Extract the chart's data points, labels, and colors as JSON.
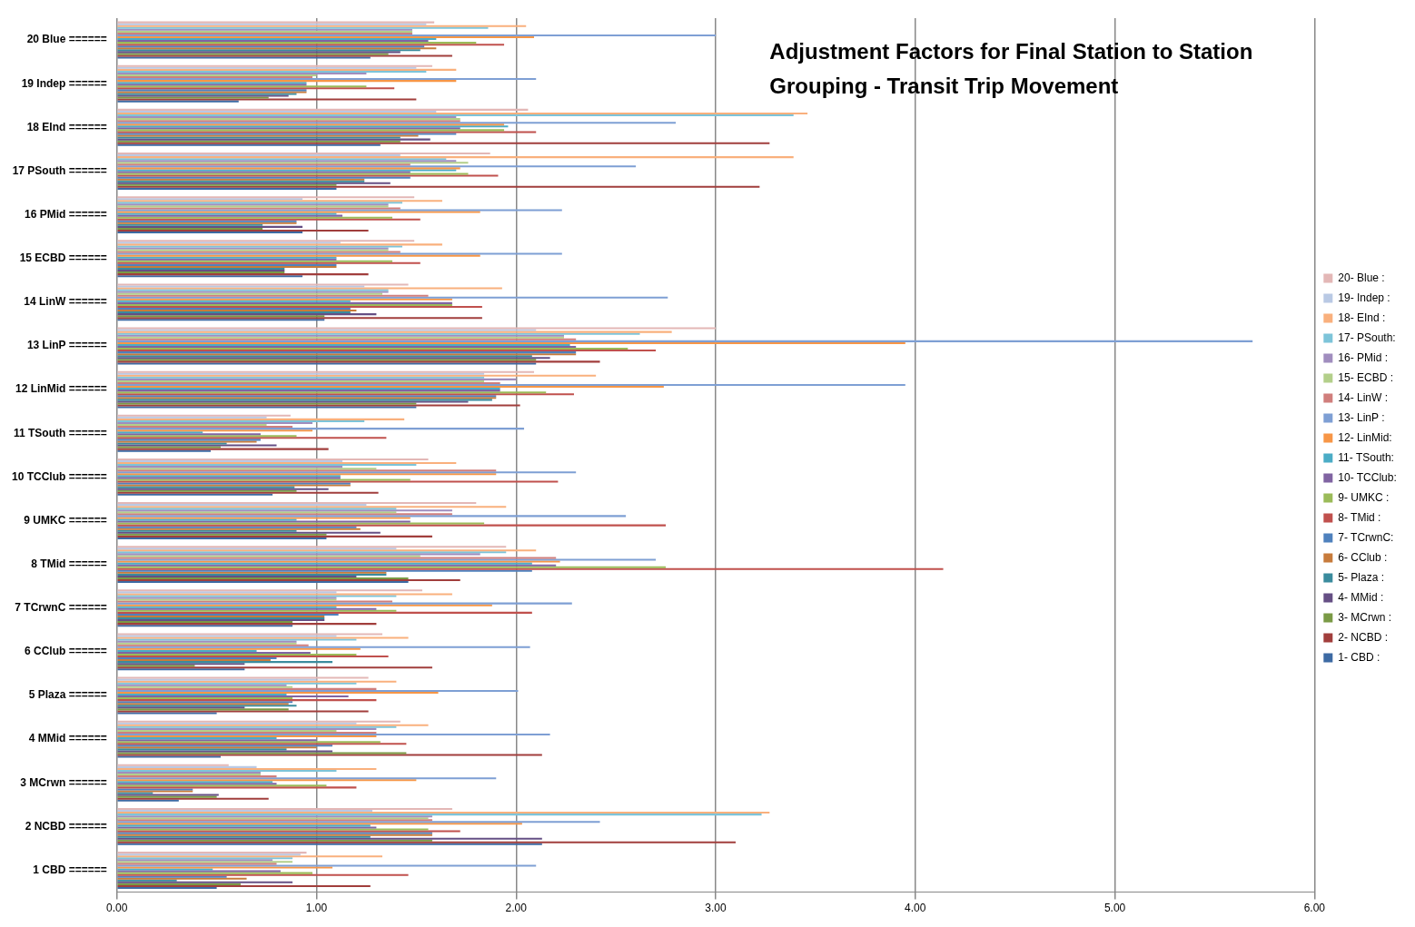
{
  "chart_data": {
    "type": "bar",
    "orientation": "horizontal",
    "title": "Adjustment Factors for Final Station to Station Grouping - Transit Trip Movement",
    "categories": [
      "20 Blue ======",
      "19 Indep ======",
      "18 EInd ======",
      "17 PSouth ======",
      "16 PMid ======",
      "15 ECBD ======",
      "14 LinW ======",
      "13 LinP ======",
      "12 LinMid ======",
      "11 TSouth ======",
      "10 TCClub ======",
      "9 UMKC ======",
      "8 TMid ======",
      "7 TCrwnC ======",
      "6 CClub ======",
      "5 Plaza ======",
      "4 MMid ======",
      "3 MCrwn ======",
      "2 NCBD ======",
      "1 CBD ======"
    ],
    "xlim": [
      0,
      6
    ],
    "xticks": [
      {
        "value": 0,
        "label": "0.00"
      },
      {
        "value": 1,
        "label": "1.00"
      },
      {
        "value": 2,
        "label": "2.00"
      },
      {
        "value": 3,
        "label": "3.00"
      },
      {
        "value": 4,
        "label": "4.00"
      },
      {
        "value": 5,
        "label": "5.00"
      },
      {
        "value": 6,
        "label": "6.00"
      }
    ],
    "grid": "x",
    "legend": "right",
    "series": [
      {
        "name": "1- CBD :",
        "color": "#3d6aa3",
        "values": [
          1.27,
          0.61,
          1.32,
          1.1,
          0.93,
          0.93,
          1.04,
          2.1,
          1.5,
          0.47,
          0.78,
          1.05,
          1.46,
          0.88,
          0.64,
          0.5,
          0.52,
          0.31,
          2.13,
          0.5
        ]
      },
      {
        "name": "2- NCBD :",
        "color": "#a13e3c",
        "values": [
          1.68,
          1.5,
          3.27,
          3.22,
          1.26,
          1.26,
          1.83,
          2.42,
          2.02,
          1.06,
          1.31,
          1.58,
          1.72,
          1.3,
          1.58,
          1.26,
          2.13,
          0.76,
          3.1,
          1.27
        ]
      },
      {
        "name": "3- MCrwn :",
        "color": "#7a9a45",
        "values": [
          1.36,
          0.76,
          1.42,
          1.1,
          0.73,
          0.84,
          1.04,
          2.1,
          1.5,
          0.52,
          0.9,
          1.05,
          1.46,
          0.88,
          0.39,
          0.86,
          1.45,
          0.5,
          1.58,
          0.62
        ]
      },
      {
        "name": "4- MMid :",
        "color": "#654f84",
        "values": [
          1.42,
          0.86,
          1.57,
          1.37,
          0.93,
          0.84,
          1.3,
          2.17,
          1.76,
          0.8,
          1.06,
          1.32,
          1.2,
          1.04,
          0.64,
          0.64,
          1.08,
          0.51,
          2.13,
          0.88
        ]
      },
      {
        "name": "5- Plaza :",
        "color": "#3a8b9d",
        "values": [
          1.52,
          0.9,
          1.42,
          1.24,
          0.73,
          0.84,
          1.17,
          2.08,
          1.88,
          0.55,
          0.89,
          0.9,
          1.35,
          1.04,
          1.08,
          0.9,
          0.85,
          0.18,
          1.27,
          0.3
        ]
      },
      {
        "name": "6- CClub :",
        "color": "#c77b3b",
        "values": [
          1.6,
          0.95,
          1.51,
          1.24,
          0.9,
          1.1,
          1.2,
          2.3,
          1.9,
          0.7,
          1.17,
          1.22,
          1.35,
          1.04,
          0.77,
          0.86,
          1.0,
          0.38,
          1.58,
          0.65
        ]
      },
      {
        "name": "7- TCrwnC:",
        "color": "#4f81bd",
        "values": [
          1.54,
          0.95,
          1.7,
          1.47,
          0.9,
          1.1,
          1.17,
          2.3,
          1.9,
          0.72,
          1.17,
          1.2,
          2.08,
          1.11,
          0.8,
          0.88,
          1.08,
          0.38,
          1.58,
          0.55
        ]
      },
      {
        "name": "8- TMid :",
        "color": "#c0504d",
        "values": [
          1.94,
          1.39,
          2.1,
          1.91,
          1.52,
          1.52,
          1.83,
          2.7,
          2.29,
          1.35,
          2.21,
          2.75,
          4.14,
          2.08,
          1.36,
          1.3,
          1.45,
          1.2,
          1.72,
          1.46
        ]
      },
      {
        "name": "9- UMKC :",
        "color": "#9bbb59",
        "values": [
          1.8,
          1.25,
          1.94,
          1.76,
          1.38,
          1.38,
          1.68,
          2.56,
          2.15,
          0.9,
          1.47,
          1.84,
          2.75,
          1.4,
          1.2,
          0.88,
          1.32,
          1.05,
          1.56,
          0.98
        ]
      },
      {
        "name": "10- TCClub:",
        "color": "#8064a2",
        "values": [
          1.56,
          0.95,
          1.72,
          1.47,
          1.13,
          1.1,
          1.68,
          2.3,
          1.92,
          0.72,
          1.12,
          1.47,
          2.2,
          1.3,
          0.97,
          1.16,
          1.0,
          0.8,
          1.3,
          0.82
        ]
      },
      {
        "name": "11- TSouth:",
        "color": "#4bacc6",
        "values": [
          1.6,
          0.95,
          1.96,
          1.7,
          1.1,
          1.1,
          1.17,
          2.27,
          1.92,
          0.43,
          1.12,
          0.9,
          2.08,
          1.1,
          0.7,
          0.85,
          0.8,
          0.78,
          1.27,
          0.48
        ]
      },
      {
        "name": "12- LinMid:",
        "color": "#f79646",
        "values": [
          2.09,
          1.7,
          1.94,
          1.72,
          1.82,
          1.82,
          1.68,
          3.95,
          2.74,
          0.98,
          1.9,
          1.47,
          2.22,
          1.88,
          1.22,
          1.61,
          1.3,
          1.5,
          2.03,
          1.08
        ]
      },
      {
        "name": "13- LinP :",
        "color": "#7e9fd4",
        "values": [
          3.0,
          2.1,
          2.8,
          2.6,
          2.23,
          2.23,
          2.76,
          5.69,
          3.95,
          2.04,
          2.3,
          2.55,
          2.7,
          2.28,
          2.07,
          2.01,
          2.17,
          1.9,
          2.42,
          2.1
        ]
      },
      {
        "name": "14- LinW :",
        "color": "#d07e7c",
        "values": [
          1.48,
          0.98,
          1.72,
          1.47,
          1.42,
          1.42,
          1.56,
          2.3,
          1.92,
          0.88,
          1.9,
          1.68,
          2.2,
          1.38,
          0.96,
          1.3,
          1.3,
          0.8,
          1.58,
          0.8
        ]
      },
      {
        "name": "15- ECBD :",
        "color": "#b3cf8a",
        "values": [
          1.48,
          1.0,
          1.72,
          1.76,
          1.36,
          1.36,
          1.33,
          2.24,
          1.84,
          0.75,
          1.3,
          1.4,
          1.52,
          1.1,
          0.9,
          0.88,
          1.1,
          0.72,
          1.56,
          0.88
        ]
      },
      {
        "name": "16- PMid :",
        "color": "#a08dbe",
        "values": [
          1.48,
          1.25,
          1.7,
          1.7,
          1.36,
          1.36,
          1.36,
          2.24,
          2.0,
          0.98,
          1.13,
          1.68,
          1.82,
          1.1,
          0.9,
          0.85,
          1.3,
          0.72,
          1.58,
          0.78
        ]
      },
      {
        "name": "17- PSouth:",
        "color": "#7dc4d9",
        "values": [
          1.86,
          1.55,
          3.39,
          1.65,
          1.43,
          1.43,
          1.36,
          2.62,
          1.84,
          1.24,
          1.5,
          1.4,
          1.95,
          1.4,
          1.2,
          1.2,
          1.4,
          1.1,
          3.23,
          0.88
        ]
      },
      {
        "name": "18- EInd :",
        "color": "#f9b07d",
        "values": [
          2.05,
          1.7,
          3.46,
          3.39,
          1.63,
          1.63,
          1.93,
          2.78,
          2.4,
          1.44,
          1.7,
          1.95,
          2.1,
          1.68,
          1.46,
          1.4,
          1.56,
          1.3,
          3.27,
          1.33
        ]
      },
      {
        "name": "19- Indep :",
        "color": "#b9c9e4",
        "values": [
          1.55,
          1.5,
          1.6,
          1.42,
          0.93,
          1.12,
          1.24,
          2.1,
          1.84,
          0.75,
          1.13,
          1.25,
          1.4,
          1.1,
          1.1,
          1.0,
          1.2,
          0.7,
          1.28,
          0.92
        ]
      },
      {
        "name": "20- Blue :",
        "color": "#e3b7b6",
        "values": [
          1.59,
          1.58,
          2.06,
          1.87,
          1.49,
          1.49,
          1.46,
          3.0,
          2.09,
          0.87,
          1.56,
          1.8,
          1.95,
          1.53,
          1.33,
          1.26,
          1.42,
          0.56,
          1.68,
          0.95
        ]
      }
    ]
  }
}
